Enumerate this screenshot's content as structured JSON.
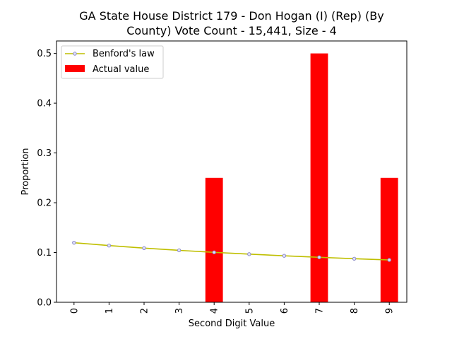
{
  "chart_data": {
    "type": "bar",
    "title_lines": [
      "GA State House District 179 - Don Hogan (I) (Rep) (By",
      "County) Vote Count - 15,441, Size - 4"
    ],
    "xlabel": "Second Digit Value",
    "ylabel": "Proportion",
    "categories": [
      "0",
      "1",
      "2",
      "3",
      "4",
      "5",
      "6",
      "7",
      "8",
      "9"
    ],
    "ylim": [
      0,
      0.525
    ],
    "yticks": [
      "0.0",
      "0.1",
      "0.2",
      "0.3",
      "0.4",
      "0.5"
    ],
    "legend_position": "upper-left",
    "series": [
      {
        "name": "Actual value",
        "kind": "bar",
        "color": "#ff0000",
        "values": [
          0,
          0,
          0,
          0,
          0.25,
          0,
          0,
          0.5,
          0,
          0.25
        ]
      },
      {
        "name": "Benford's law",
        "kind": "line",
        "color": "#bfbf00",
        "marker_color": "#8c8cc8",
        "values": [
          0.11968,
          0.11389,
          0.10882,
          0.10433,
          0.10031,
          0.09668,
          0.09337,
          0.09035,
          0.08757,
          0.085
        ]
      }
    ]
  }
}
